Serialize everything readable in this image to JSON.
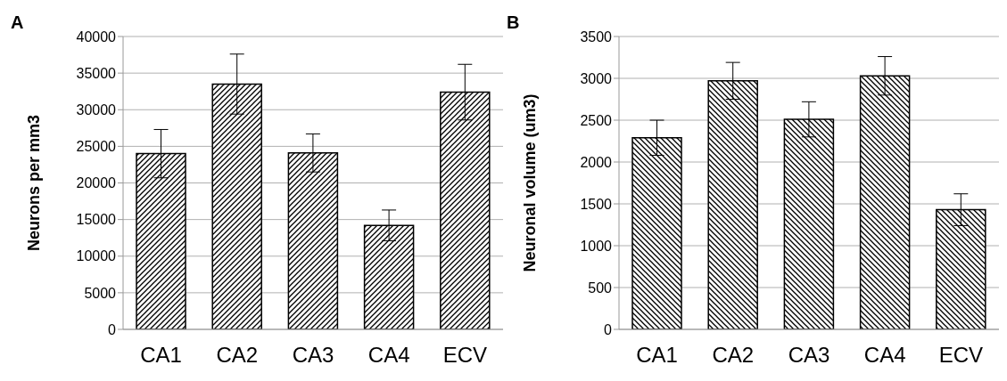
{
  "chart_data": [
    {
      "type": "bar",
      "title": "A",
      "ylabel": "Neurons per mm3",
      "categories": [
        "CA1",
        "CA2",
        "CA3",
        "CA4",
        "ECV"
      ],
      "values": [
        24000,
        33500,
        24100,
        14200,
        32400
      ],
      "errors": [
        3300,
        4100,
        2600,
        2100,
        3800
      ],
      "color": "#000000",
      "ylim": [
        0,
        40000
      ],
      "yticks": [
        0,
        5000,
        10000,
        15000,
        20000,
        25000,
        30000,
        35000,
        40000
      ],
      "grid": "y"
    },
    {
      "type": "bar",
      "title": "B",
      "ylabel": "Neuronal volume (um3)",
      "categories": [
        "CA1",
        "CA2",
        "CA3",
        "CA4",
        "ECV"
      ],
      "values": [
        2290,
        2970,
        2510,
        3030,
        1430
      ],
      "errors": [
        210,
        220,
        210,
        230,
        190
      ],
      "color": "#000000",
      "ylim": [
        0,
        3500
      ],
      "yticks": [
        0,
        500,
        1000,
        1500,
        2000,
        2500,
        3000,
        3500
      ],
      "grid": "y"
    }
  ]
}
